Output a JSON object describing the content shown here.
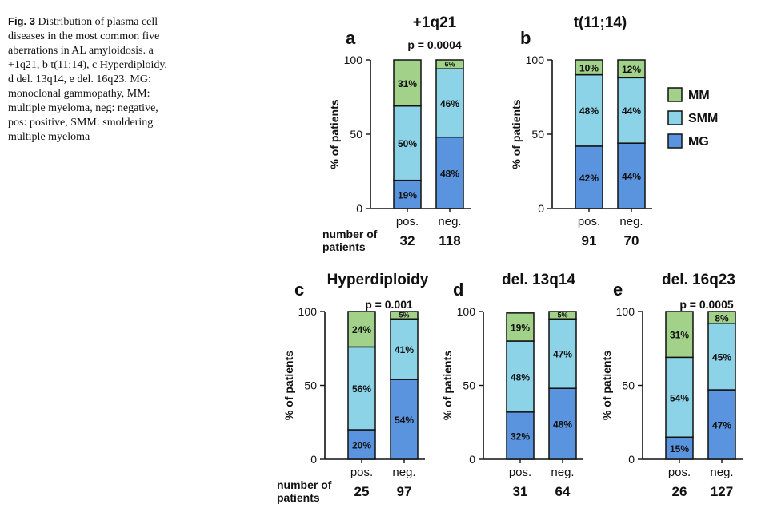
{
  "caption": {
    "label": "Fig. 3",
    "text": "Distribution of plasma cell diseases in the most common five aberrations in AL amyloidosis. a +1q21, b t(11;14), c Hyperdiploidy, d del. 13q14, e del. 16q23. MG: monoclonal gammopathy, MM: multiple myeloma, neg: negative, pos: positive, SMM: smoldering multiple myeloma"
  },
  "colors": {
    "MM": "#a2d28a",
    "SMM": "#8dd3e8",
    "MG": "#5b94de",
    "axis": "#111111"
  },
  "legend": {
    "items": [
      "MM",
      "SMM",
      "MG"
    ]
  },
  "row_label": "number of patients",
  "chart_data": [
    {
      "type": "bar",
      "stacked": true,
      "panel": "a",
      "title": "+1q21",
      "p_value": "p = 0.0004",
      "ylabel": "% of patients",
      "ylim": [
        0,
        100
      ],
      "yticks": [
        0,
        50,
        100
      ],
      "categories": [
        "pos.",
        "neg."
      ],
      "n": [
        "32",
        "118"
      ],
      "series": [
        {
          "name": "MG",
          "values": [
            19,
            48
          ],
          "labels": [
            "19%",
            "48%"
          ]
        },
        {
          "name": "SMM",
          "values": [
            50,
            46
          ],
          "labels": [
            "50%",
            "46%"
          ]
        },
        {
          "name": "MM",
          "values": [
            31,
            6
          ],
          "labels": [
            "31%",
            "6%"
          ]
        }
      ]
    },
    {
      "type": "bar",
      "stacked": true,
      "panel": "b",
      "title": "t(11;14)",
      "p_value": "",
      "ylabel": "% of patients",
      "ylim": [
        0,
        100
      ],
      "yticks": [
        0,
        50,
        100
      ],
      "categories": [
        "pos.",
        "neg."
      ],
      "n": [
        "91",
        "70"
      ],
      "series": [
        {
          "name": "MG",
          "values": [
            42,
            44
          ],
          "labels": [
            "42%",
            "44%"
          ]
        },
        {
          "name": "SMM",
          "values": [
            48,
            44
          ],
          "labels": [
            "48%",
            "44%"
          ]
        },
        {
          "name": "MM",
          "values": [
            10,
            12
          ],
          "labels": [
            "10%",
            "12%"
          ]
        }
      ]
    },
    {
      "type": "bar",
      "stacked": true,
      "panel": "c",
      "title": "Hyperdiploidy",
      "p_value": "p = 0.001",
      "ylabel": "% of patients",
      "ylim": [
        0,
        100
      ],
      "yticks": [
        0,
        50,
        100
      ],
      "categories": [
        "pos.",
        "neg."
      ],
      "n": [
        "25",
        "97"
      ],
      "series": [
        {
          "name": "MG",
          "values": [
            20,
            54
          ],
          "labels": [
            "20%",
            "54%"
          ]
        },
        {
          "name": "SMM",
          "values": [
            56,
            41
          ],
          "labels": [
            "56%",
            "41%"
          ]
        },
        {
          "name": "MM",
          "values": [
            24,
            5
          ],
          "labels": [
            "24%",
            "5%"
          ]
        }
      ]
    },
    {
      "type": "bar",
      "stacked": true,
      "panel": "d",
      "title": "del. 13q14",
      "p_value": "",
      "ylabel": "% of patients",
      "ylim": [
        0,
        100
      ],
      "yticks": [
        0,
        50,
        100
      ],
      "categories": [
        "pos.",
        "neg."
      ],
      "n": [
        "31",
        "64"
      ],
      "series": [
        {
          "name": "MG",
          "values": [
            32,
            48
          ],
          "labels": [
            "32%",
            "48%"
          ]
        },
        {
          "name": "SMM",
          "values": [
            48,
            47
          ],
          "labels": [
            "48%",
            "47%"
          ]
        },
        {
          "name": "MM",
          "values": [
            19,
            5
          ],
          "labels": [
            "19%",
            "5%"
          ]
        }
      ]
    },
    {
      "type": "bar",
      "stacked": true,
      "panel": "e",
      "title": "del. 16q23",
      "p_value": "p = 0.0005",
      "ylabel": "% of patients",
      "ylim": [
        0,
        100
      ],
      "yticks": [
        0,
        50,
        100
      ],
      "categories": [
        "pos.",
        "neg."
      ],
      "n": [
        "26",
        "127"
      ],
      "series": [
        {
          "name": "MG",
          "values": [
            15,
            47
          ],
          "labels": [
            "15%",
            "47%"
          ]
        },
        {
          "name": "SMM",
          "values": [
            54,
            45
          ],
          "labels": [
            "54%",
            "45%"
          ]
        },
        {
          "name": "MM",
          "values": [
            31,
            8
          ],
          "labels": [
            "31%",
            "8%"
          ]
        }
      ]
    }
  ]
}
